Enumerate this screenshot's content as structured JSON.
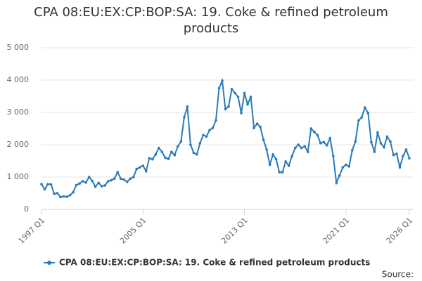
{
  "chart_data": {
    "type": "line",
    "title": "CPA 08:EU:EX:CP:BOP:SA: 19. Coke & refined petroleum products",
    "source_label": "Source:",
    "categories": [
      "1997 Q1",
      null,
      null,
      null,
      null,
      null,
      null,
      null,
      null,
      null,
      null,
      null,
      null,
      null,
      null,
      null,
      null,
      null,
      null,
      null,
      null,
      null,
      null,
      null,
      null,
      null,
      null,
      null,
      null,
      null,
      null,
      null,
      "2005 Q1",
      null,
      null,
      null,
      null,
      null,
      null,
      null,
      null,
      null,
      null,
      null,
      null,
      null,
      null,
      null,
      null,
      null,
      null,
      null,
      null,
      null,
      null,
      null,
      null,
      null,
      null,
      null,
      null,
      null,
      null,
      null,
      "2013 Q1",
      null,
      null,
      null,
      null,
      null,
      null,
      null,
      null,
      null,
      null,
      null,
      null,
      null,
      null,
      null,
      null,
      null,
      null,
      null,
      null,
      null,
      null,
      null,
      null,
      null,
      null,
      null,
      null,
      null,
      null,
      null,
      "2021 Q1",
      null,
      null,
      null,
      null,
      null,
      null,
      null,
      null,
      null,
      null,
      null,
      null,
      null,
      null,
      null,
      null,
      null,
      null,
      null,
      "2026 Q1"
    ],
    "series": [
      {
        "name": "CPA 08:EU:EX:CP:BOP:SA: 19. Coke & refined petroleum products",
        "color": "#2b7bb9",
        "values": [
          780,
          620,
          780,
          770,
          480,
          500,
          380,
          400,
          390,
          440,
          530,
          750,
          800,
          870,
          830,
          1000,
          880,
          700,
          820,
          720,
          740,
          870,
          900,
          950,
          1150,
          950,
          920,
          850,
          950,
          1000,
          1250,
          1300,
          1350,
          1180,
          1580,
          1550,
          1700,
          1900,
          1780,
          1600,
          1560,
          1780,
          1680,
          1950,
          2100,
          2850,
          3180,
          2000,
          1750,
          1700,
          2050,
          2300,
          2250,
          2450,
          2520,
          2750,
          3750,
          3980,
          3100,
          3180,
          3720,
          3600,
          3480,
          2980,
          3600,
          3250,
          3480,
          2520,
          2650,
          2550,
          2150,
          1850,
          1380,
          1700,
          1550,
          1150,
          1150,
          1480,
          1350,
          1650,
          1900,
          2000,
          1900,
          1950,
          1780,
          2500,
          2400,
          2300,
          2050,
          2080,
          1980,
          2200,
          1650,
          820,
          1050,
          1300,
          1380,
          1330,
          1830,
          2100,
          2750,
          2850,
          3150,
          2980,
          2080,
          1780,
          2380,
          2050,
          1920,
          2250,
          2100,
          1680,
          1720,
          1300,
          1650,
          1850,
          1580
        ]
      }
    ],
    "ylim": [
      0,
      5000
    ],
    "yticks": [
      0,
      {
        "value": 1000,
        "label": "1 000"
      },
      {
        "value": 2000,
        "label": "2 000"
      },
      {
        "value": 3000,
        "label": "3 000"
      },
      {
        "value": 4000,
        "label": "4 000"
      },
      {
        "value": 5000,
        "label": "5 000"
      }
    ],
    "grid": true
  }
}
